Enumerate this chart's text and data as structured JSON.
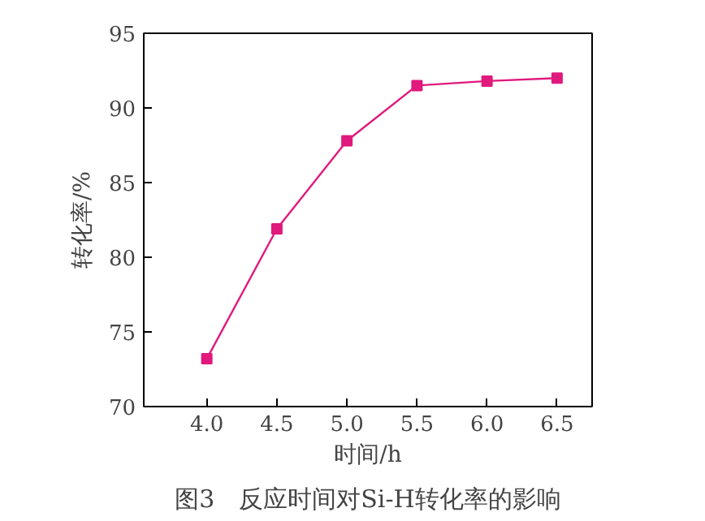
{
  "chart_data": {
    "type": "line",
    "xlabel": "时间/h",
    "ylabel": "转化率/%",
    "x": [
      4.0,
      4.5,
      5.0,
      5.5,
      6.0,
      6.5
    ],
    "series": [
      {
        "color": "#e0197d",
        "values": [
          73.2,
          81.9,
          87.8,
          91.5,
          91.8,
          92.0
        ]
      }
    ],
    "xlim": [
      3.55,
      6.75
    ],
    "xticks": [
      {
        "value": 4.0,
        "label": "4.0"
      },
      {
        "value": 4.5,
        "label": "4.5"
      },
      {
        "value": 5.0,
        "label": "5.0"
      },
      {
        "value": 5.5,
        "label": "5.5"
      },
      {
        "value": 6.0,
        "label": "6.0"
      },
      {
        "value": 6.5,
        "label": "6.5"
      }
    ],
    "ylim": [
      70,
      95
    ],
    "yticks": [
      70,
      75,
      80,
      85,
      90,
      95
    ],
    "marker": "square",
    "line_style": "solid",
    "grid": false,
    "annotations": [
      "图3　反应时间对Si-H转化率的影响"
    ]
  }
}
